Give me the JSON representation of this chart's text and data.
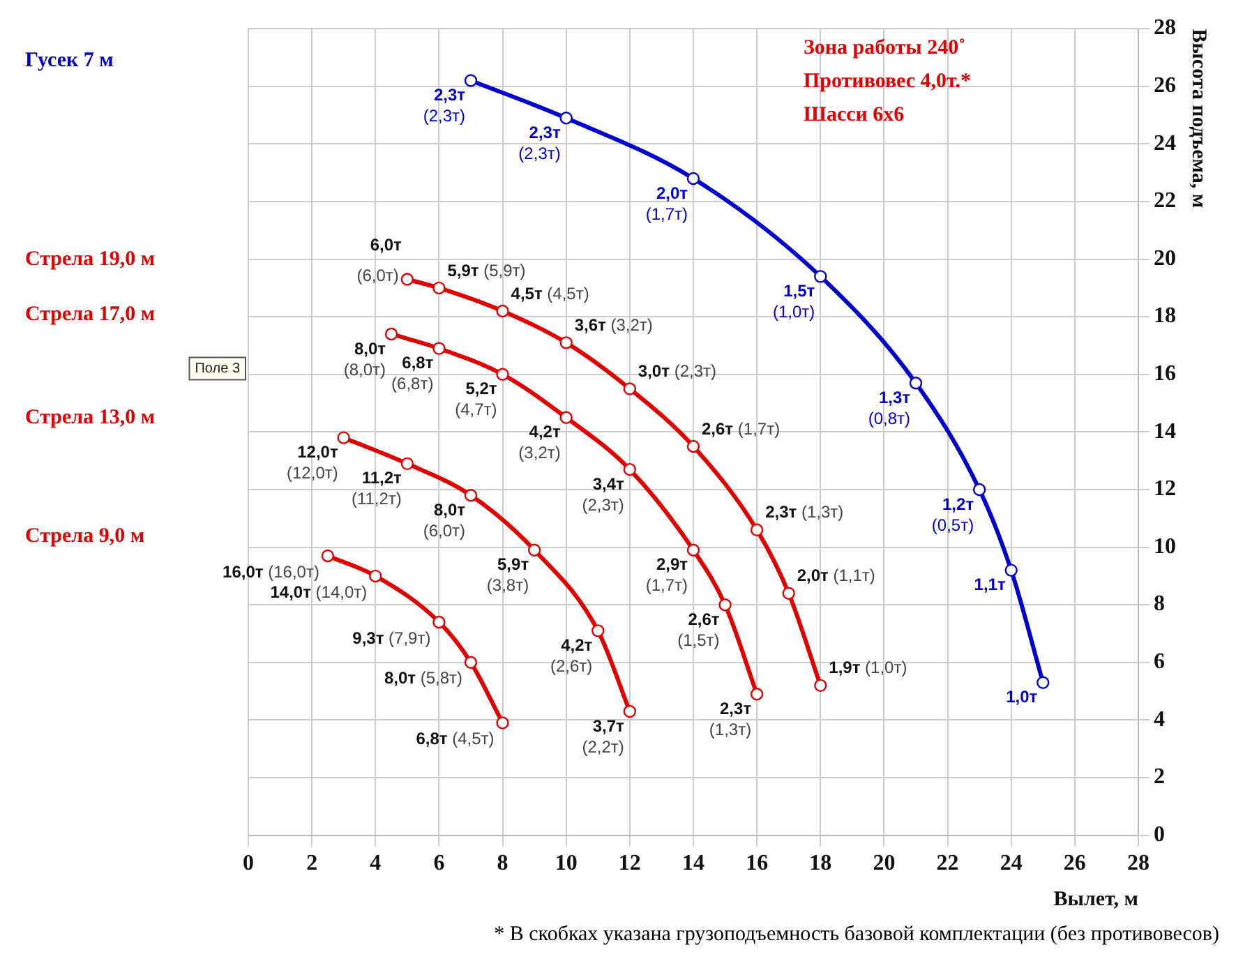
{
  "chart_data": {
    "type": "line",
    "xlabel": "Вылет, м",
    "ylabel": "Высота подъема, м",
    "xlim": [
      0,
      28
    ],
    "xticks": [
      0,
      2,
      4,
      6,
      8,
      10,
      12,
      14,
      16,
      18,
      20,
      22,
      24,
      26,
      28
    ],
    "ylim": [
      0,
      28
    ],
    "yticks": [
      0,
      2,
      4,
      6,
      8,
      10,
      12,
      14,
      16,
      18,
      20,
      22,
      24,
      26,
      28
    ],
    "grid": true,
    "legend": false,
    "marker": "circle",
    "line_style": "solid",
    "series": [
      {
        "color": "#0000cc",
        "x": [
          7,
          10,
          14,
          18,
          21,
          23,
          24,
          25
        ],
        "values": [
          26.2,
          24.9,
          22.8,
          19.4,
          15.7,
          12.0,
          9.2,
          5.3
        ]
      },
      {
        "color": "#e00000",
        "x": [
          5,
          6,
          8,
          10,
          12,
          14,
          16,
          17,
          18
        ],
        "values": [
          19.3,
          19.0,
          18.2,
          17.1,
          15.5,
          13.5,
          10.6,
          8.4,
          5.2
        ]
      },
      {
        "color": "#e00000",
        "x": [
          4.5,
          6,
          8,
          10,
          12,
          14,
          15,
          16
        ],
        "values": [
          17.4,
          16.9,
          16.0,
          14.5,
          12.7,
          9.9,
          8.0,
          4.9
        ]
      },
      {
        "color": "#e00000",
        "x": [
          3,
          5,
          7,
          9,
          11,
          12
        ],
        "values": [
          13.8,
          12.9,
          11.8,
          9.9,
          7.1,
          4.3
        ]
      },
      {
        "color": "#e00000",
        "x": [
          2.5,
          4,
          6,
          7,
          8
        ],
        "values": [
          9.7,
          9.0,
          7.4,
          6.0,
          3.9
        ]
      }
    ],
    "annotations": [
      "Зона работы 240˚",
      "Противовес 4,0т.*",
      "Шасси 6х6",
      "* В скобках указана грузоподъемность базовой комплектации (без противовесов)",
      "Поле 3",
      "Гусек 7 м",
      "Стрела 19,0 м",
      "Стрела 17,0 м",
      "Стрела 13,0 м",
      "Стрела 9,0 м",
      {
        "text": "2,3т (2,3т)",
        "x": 7,
        "y": 26.2
      },
      {
        "text": "2,3т (2,3т)",
        "x": 10,
        "y": 24.9
      },
      {
        "text": "2,0т (1,7т)",
        "x": 14,
        "y": 22.8
      },
      {
        "text": "1,5т (1,0т)",
        "x": 18,
        "y": 19.4
      },
      {
        "text": "1,3т (0,8т)",
        "x": 21,
        "y": 15.7
      },
      {
        "text": "1,2т (0,5т)",
        "x": 23,
        "y": 12.0
      },
      {
        "text": "1,1т",
        "x": 24,
        "y": 9.2
      },
      {
        "text": "1,0т",
        "x": 25,
        "y": 5.3
      },
      {
        "text": "6,0т (6,0т)",
        "x": 5,
        "y": 19.3
      },
      {
        "text": "5,9т (5,9т)",
        "x": 6,
        "y": 19.0
      },
      {
        "text": "4,5т (4,5т)",
        "x": 8,
        "y": 18.2
      },
      {
        "text": "3,6т (3,2т)",
        "x": 10,
        "y": 17.1
      },
      {
        "text": "3,0т (2,3т)",
        "x": 12,
        "y": 15.5
      },
      {
        "text": "2,6т (1,7т)",
        "x": 14,
        "y": 13.5
      },
      {
        "text": "2,3т (1,3т)",
        "x": 16,
        "y": 10.6
      },
      {
        "text": "2,0т (1,1т)",
        "x": 17,
        "y": 8.4
      },
      {
        "text": "1,9т (1,0т)",
        "x": 18,
        "y": 5.2
      },
      {
        "text": "8,0т (8,0т)",
        "x": 4.5,
        "y": 17.4
      },
      {
        "text": "6,8т (6,8т)",
        "x": 6,
        "y": 16.9
      },
      {
        "text": "5,2т (4,7т)",
        "x": 8,
        "y": 16.0
      },
      {
        "text": "4,2т (3,2т)",
        "x": 10,
        "y": 14.5
      },
      {
        "text": "3,4т (2,3т)",
        "x": 12,
        "y": 12.7
      },
      {
        "text": "2,9т (1,7т)",
        "x": 14,
        "y": 9.9
      },
      {
        "text": "2,6т (1,5т)",
        "x": 15,
        "y": 8.0
      },
      {
        "text": "2,3т (1,3т)",
        "x": 16,
        "y": 4.9
      },
      {
        "text": "12,0т (12,0т)",
        "x": 3,
        "y": 13.8
      },
      {
        "text": "11,2т (11,2т)",
        "x": 5,
        "y": 12.9
      },
      {
        "text": "8,0т (6,0т)",
        "x": 7,
        "y": 11.8
      },
      {
        "text": "5,9т (3,8т)",
        "x": 9,
        "y": 9.9
      },
      {
        "text": "4,2т (2,6т)",
        "x": 11,
        "y": 7.1
      },
      {
        "text": "3,7т (2,2т)",
        "x": 12,
        "y": 4.3
      },
      {
        "text": "16,0т (16,0т)",
        "x": 2.5,
        "y": 9.7
      },
      {
        "text": "14,0т (14,0т)",
        "x": 4,
        "y": 9.0
      },
      {
        "text": "9,3т (7,9т)",
        "x": 6,
        "y": 7.4
      },
      {
        "text": "8,0т (5,8т)",
        "x": 7,
        "y": 6.0
      },
      {
        "text": "6,8т (4,5т)",
        "x": 8,
        "y": 3.9
      }
    ]
  }
}
